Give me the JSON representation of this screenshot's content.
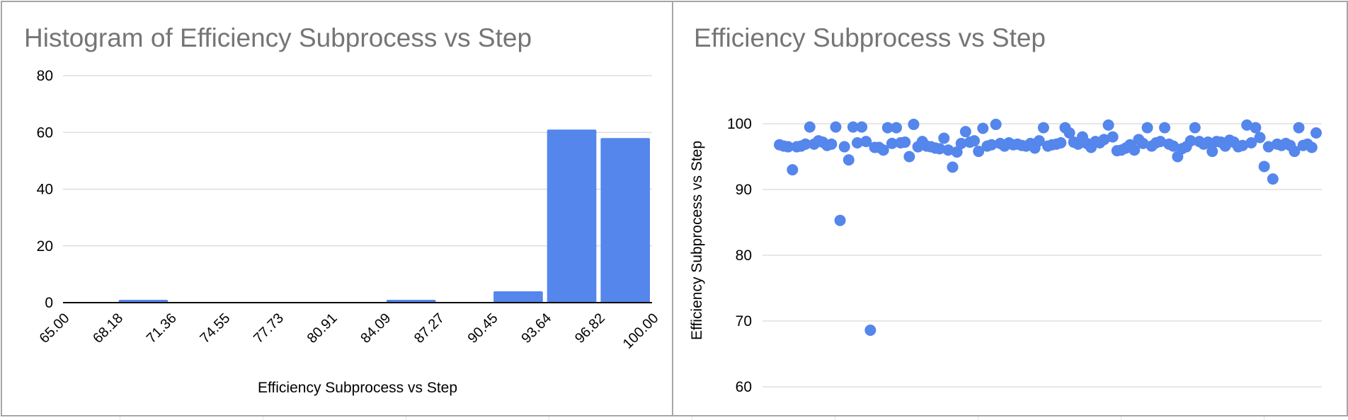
{
  "colors": {
    "series": "#5486ec",
    "grid": "#cfcfcf",
    "title": "#757575",
    "border": "#a6a6a6",
    "axis": "#000000"
  },
  "chart_data": [
    {
      "type": "bar",
      "title": "Histogram of Efficiency Subprocess vs Step",
      "xlabel": "Efficiency Subprocess vs Step",
      "ylabel": "",
      "bin_edges": [
        "65.00",
        "68.18",
        "71.36",
        "74.55",
        "77.73",
        "80.91",
        "84.09",
        "87.27",
        "90.45",
        "93.64",
        "96.82",
        "100.00"
      ],
      "values": [
        0,
        1,
        0,
        0,
        0,
        0,
        1,
        0,
        4,
        61,
        58
      ],
      "bins": [
        {
          "from": 65.0,
          "to": 68.18,
          "count": 0
        },
        {
          "from": 68.18,
          "to": 71.36,
          "count": 1
        },
        {
          "from": 71.36,
          "to": 74.55,
          "count": 0
        },
        {
          "from": 74.55,
          "to": 77.73,
          "count": 0
        },
        {
          "from": 77.73,
          "to": 80.91,
          "count": 0
        },
        {
          "from": 80.91,
          "to": 84.09,
          "count": 0
        },
        {
          "from": 84.09,
          "to": 87.27,
          "count": 1
        },
        {
          "from": 87.27,
          "to": 90.45,
          "count": 0
        },
        {
          "from": 90.45,
          "to": 93.64,
          "count": 4
        },
        {
          "from": 93.64,
          "to": 96.82,
          "count": 61
        },
        {
          "from": 96.82,
          "to": 100.0,
          "count": 58
        }
      ],
      "y_ticks": [
        "0",
        "20",
        "40",
        "60",
        "80"
      ],
      "ylim": [
        0,
        80
      ],
      "grid": true,
      "legend": "none"
    },
    {
      "type": "scatter",
      "title": "Efficiency Subprocess vs Step",
      "xlabel": "",
      "ylabel": "Efficiency Subprocess vs Step",
      "y_ticks": [
        "60",
        "70",
        "80",
        "90",
        "100"
      ],
      "ylim": [
        58,
        104
      ],
      "xlim": [
        0,
        125
      ],
      "grid": true,
      "legend": "none",
      "points": [
        {
          "x": 1,
          "y": 96.8
        },
        {
          "x": 2,
          "y": 96.6
        },
        {
          "x": 3,
          "y": 96.5
        },
        {
          "x": 4,
          "y": 93.0
        },
        {
          "x": 5,
          "y": 96.5
        },
        {
          "x": 6,
          "y": 96.6
        },
        {
          "x": 7,
          "y": 96.9
        },
        {
          "x": 8,
          "y": 99.5
        },
        {
          "x": 9,
          "y": 96.9
        },
        {
          "x": 10,
          "y": 97.4
        },
        {
          "x": 11,
          "y": 97.2
        },
        {
          "x": 12,
          "y": 96.7
        },
        {
          "x": 13,
          "y": 96.9
        },
        {
          "x": 14,
          "y": 99.5
        },
        {
          "x": 15,
          "y": 85.3
        },
        {
          "x": 16,
          "y": 96.5
        },
        {
          "x": 17,
          "y": 94.5
        },
        {
          "x": 18,
          "y": 99.5
        },
        {
          "x": 19,
          "y": 97.1
        },
        {
          "x": 20,
          "y": 99.5
        },
        {
          "x": 21,
          "y": 97.3
        },
        {
          "x": 22,
          "y": 68.6
        },
        {
          "x": 23,
          "y": 96.4
        },
        {
          "x": 24,
          "y": 96.4
        },
        {
          "x": 25,
          "y": 96.0
        },
        {
          "x": 26,
          "y": 99.4
        },
        {
          "x": 27,
          "y": 97.0
        },
        {
          "x": 28,
          "y": 99.4
        },
        {
          "x": 29,
          "y": 97.1
        },
        {
          "x": 30,
          "y": 97.2
        },
        {
          "x": 31,
          "y": 95.0
        },
        {
          "x": 32,
          "y": 99.9
        },
        {
          "x": 33,
          "y": 96.5
        },
        {
          "x": 34,
          "y": 97.3
        },
        {
          "x": 35,
          "y": 96.6
        },
        {
          "x": 36,
          "y": 96.5
        },
        {
          "x": 37,
          "y": 96.3
        },
        {
          "x": 38,
          "y": 96.2
        },
        {
          "x": 39,
          "y": 97.8
        },
        {
          "x": 40,
          "y": 96.0
        },
        {
          "x": 41,
          "y": 93.4
        },
        {
          "x": 42,
          "y": 95.7
        },
        {
          "x": 43,
          "y": 97.0
        },
        {
          "x": 44,
          "y": 98.8
        },
        {
          "x": 45,
          "y": 97.2
        },
        {
          "x": 46,
          "y": 97.4
        },
        {
          "x": 47,
          "y": 95.8
        },
        {
          "x": 48,
          "y": 99.3
        },
        {
          "x": 49,
          "y": 96.6
        },
        {
          "x": 50,
          "y": 96.8
        },
        {
          "x": 51,
          "y": 99.9
        },
        {
          "x": 52,
          "y": 97.0
        },
        {
          "x": 53,
          "y": 96.6
        },
        {
          "x": 54,
          "y": 97.1
        },
        {
          "x": 55,
          "y": 96.8
        },
        {
          "x": 56,
          "y": 96.9
        },
        {
          "x": 57,
          "y": 96.7
        },
        {
          "x": 58,
          "y": 96.6
        },
        {
          "x": 59,
          "y": 97.0
        },
        {
          "x": 60,
          "y": 96.3
        },
        {
          "x": 61,
          "y": 97.4
        },
        {
          "x": 62,
          "y": 99.4
        },
        {
          "x": 63,
          "y": 96.6
        },
        {
          "x": 64,
          "y": 96.8
        },
        {
          "x": 65,
          "y": 96.9
        },
        {
          "x": 66,
          "y": 97.1
        },
        {
          "x": 67,
          "y": 99.4
        },
        {
          "x": 68,
          "y": 98.6
        },
        {
          "x": 69,
          "y": 97.2
        },
        {
          "x": 70,
          "y": 96.9
        },
        {
          "x": 71,
          "y": 98.0
        },
        {
          "x": 72,
          "y": 97.0
        },
        {
          "x": 73,
          "y": 96.4
        },
        {
          "x": 74,
          "y": 97.3
        },
        {
          "x": 75,
          "y": 97.1
        },
        {
          "x": 76,
          "y": 97.6
        },
        {
          "x": 77,
          "y": 99.8
        },
        {
          "x": 78,
          "y": 98.0
        },
        {
          "x": 79,
          "y": 95.9
        },
        {
          "x": 80,
          "y": 96.0
        },
        {
          "x": 81,
          "y": 96.3
        },
        {
          "x": 82,
          "y": 96.8
        },
        {
          "x": 83,
          "y": 96.0
        },
        {
          "x": 84,
          "y": 97.6
        },
        {
          "x": 85,
          "y": 97.0
        },
        {
          "x": 86,
          "y": 99.4
        },
        {
          "x": 87,
          "y": 96.6
        },
        {
          "x": 88,
          "y": 97.1
        },
        {
          "x": 89,
          "y": 97.3
        },
        {
          "x": 90,
          "y": 99.4
        },
        {
          "x": 91,
          "y": 96.9
        },
        {
          "x": 92,
          "y": 96.6
        },
        {
          "x": 93,
          "y": 95.0
        },
        {
          "x": 94,
          "y": 96.2
        },
        {
          "x": 95,
          "y": 96.5
        },
        {
          "x": 96,
          "y": 97.4
        },
        {
          "x": 97,
          "y": 99.4
        },
        {
          "x": 98,
          "y": 97.3
        },
        {
          "x": 99,
          "y": 96.9
        },
        {
          "x": 100,
          "y": 97.2
        },
        {
          "x": 101,
          "y": 95.8
        },
        {
          "x": 102,
          "y": 97.3
        },
        {
          "x": 103,
          "y": 97.2
        },
        {
          "x": 104,
          "y": 96.6
        },
        {
          "x": 105,
          "y": 97.5
        },
        {
          "x": 106,
          "y": 97.2
        },
        {
          "x": 107,
          "y": 96.5
        },
        {
          "x": 108,
          "y": 96.7
        },
        {
          "x": 109,
          "y": 99.8
        },
        {
          "x": 110,
          "y": 97.1
        },
        {
          "x": 111,
          "y": 99.4
        },
        {
          "x": 112,
          "y": 97.9
        },
        {
          "x": 113,
          "y": 93.5
        },
        {
          "x": 114,
          "y": 96.5
        },
        {
          "x": 115,
          "y": 91.6
        },
        {
          "x": 116,
          "y": 96.9
        },
        {
          "x": 117,
          "y": 96.7
        },
        {
          "x": 118,
          "y": 97.0
        },
        {
          "x": 119,
          "y": 96.7
        },
        {
          "x": 120,
          "y": 95.8
        },
        {
          "x": 121,
          "y": 99.4
        },
        {
          "x": 122,
          "y": 96.7
        },
        {
          "x": 123,
          "y": 96.9
        },
        {
          "x": 124,
          "y": 96.4
        },
        {
          "x": 125,
          "y": 98.6
        }
      ]
    }
  ]
}
